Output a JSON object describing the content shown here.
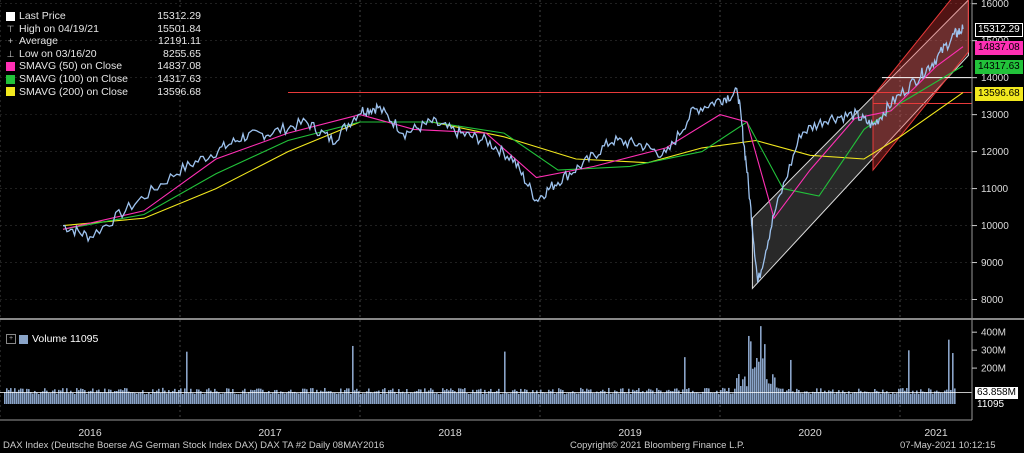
{
  "legend": {
    "items": [
      {
        "label": "Last Price",
        "value": "15312.29",
        "swatch": "#ffffff",
        "kind": "box"
      },
      {
        "label": "High on 04/19/21",
        "value": "15501.84",
        "kind": "high"
      },
      {
        "label": "Average",
        "value": "12191.11",
        "kind": "avg"
      },
      {
        "label": "Low on 03/16/20",
        "value": "8255.65",
        "kind": "low"
      },
      {
        "label": "SMAVG (50)  on Close",
        "value": "14837.08",
        "swatch": "#ff2fb4",
        "kind": "box"
      },
      {
        "label": "SMAVG (100)  on Close",
        "value": "14317.63",
        "swatch": "#22c23a",
        "kind": "box"
      },
      {
        "label": "SMAVG (200)  on Close",
        "value": "13596.68",
        "swatch": "#f2e81e",
        "kind": "box"
      }
    ]
  },
  "volume_legend": {
    "label": "Volume  11095"
  },
  "price_labels": [
    {
      "text": "15312.29",
      "value": 15312.29,
      "bg": "#000000",
      "fg": "#ffffff",
      "border": "#ffffff"
    },
    {
      "text": "14837.08",
      "value": 14837.08,
      "bg": "#ff2fb4",
      "fg": "#000000",
      "border": "#ff2fb4"
    },
    {
      "text": "14317.63",
      "value": 14317.63,
      "bg": "#22c23a",
      "fg": "#000000",
      "border": "#22c23a"
    },
    {
      "text": "13596.68",
      "value": 13596.68,
      "bg": "#f2e81e",
      "fg": "#000000",
      "border": "#f2e81e"
    }
  ],
  "volume_labels": [
    {
      "text": "63.858M",
      "bg": "#ffffff",
      "fg": "#000000"
    },
    {
      "text": "11095",
      "bg": "#000000",
      "fg": "#ffffff"
    }
  ],
  "footer": {
    "left": "DAX Index (Deutsche Boerse AG German Stock Index DAX)  DAX TA #2  Daily 08MAY2016",
    "center": "Copyright© 2021 Bloomberg Finance L.P.",
    "right": "07-May-2021  10:12:15"
  },
  "colors": {
    "price": "#9ec3ef",
    "sma50": "#ff2fb4",
    "sma100": "#22c23a",
    "sma200": "#f2e81e",
    "volume": "#8aa4c8",
    "channel_red": "#e83a3a",
    "channel_white": "#dddddd"
  },
  "chart_data": {
    "type": "line",
    "title": "DAX Index (Deutsche Boerse AG German Stock Index DAX)",
    "x_ticks": [
      "2016",
      "2017",
      "2018",
      "2019",
      "2020",
      "2021"
    ],
    "y_ticks": [
      8000,
      9000,
      10000,
      11000,
      12000,
      13000,
      14000,
      15000,
      16000
    ],
    "ylim": [
      7500,
      16100
    ],
    "volume_ticks": [
      "400M",
      "300M",
      "200M"
    ],
    "volume_ylim": [
      0,
      440
    ],
    "key_values": {
      "last": 15312.29,
      "high": 15501.84,
      "high_date": "04/19/21",
      "average": 12191.11,
      "low": 8255.65,
      "low_date": "03/16/20",
      "sma50": 14837.08,
      "sma100": 14317.63,
      "sma200": 13596.68,
      "volume": 11095,
      "avg_volume": "63.858M"
    },
    "series": [
      {
        "name": "Last Price",
        "x": [
          2016.35,
          2016.5,
          2016.75,
          2017.0,
          2017.2,
          2017.35,
          2017.5,
          2017.7,
          2017.85,
          2018.0,
          2018.1,
          2018.25,
          2018.4,
          2018.55,
          2018.7,
          2018.85,
          2018.98,
          2019.1,
          2019.25,
          2019.4,
          2019.55,
          2019.7,
          2019.85,
          2020.0,
          2020.1,
          2020.15,
          2020.21,
          2020.3,
          2020.45,
          2020.6,
          2020.75,
          2020.85,
          2020.95,
          2021.1,
          2021.2,
          2021.3,
          2021.35
        ],
        "values": [
          10000,
          9700,
          10600,
          11500,
          12000,
          12400,
          12500,
          12800,
          12300,
          13100,
          13200,
          12500,
          12800,
          12500,
          12300,
          11800,
          10700,
          11200,
          11700,
          12300,
          12200,
          11900,
          13100,
          13400,
          13600,
          11500,
          8450,
          10300,
          12500,
          12900,
          13000,
          12700,
          13300,
          14000,
          14500,
          15150,
          15312
        ]
      },
      {
        "name": "SMAVG (50)  on Close",
        "x": [
          2016.35,
          2016.8,
          2017.2,
          2017.6,
          2018.0,
          2018.3,
          2018.7,
          2018.98,
          2019.3,
          2019.7,
          2020.0,
          2020.15,
          2020.3,
          2020.5,
          2020.75,
          2020.95,
          2021.2,
          2021.35
        ],
        "values": [
          9900,
          10400,
          11800,
          12500,
          13000,
          12600,
          12500,
          11300,
          11600,
          12100,
          13000,
          12800,
          10200,
          11500,
          12900,
          13100,
          14300,
          14837
        ]
      },
      {
        "name": "SMAVG (100)  on Close",
        "x": [
          2016.35,
          2016.8,
          2017.2,
          2017.6,
          2018.0,
          2018.4,
          2018.8,
          2019.1,
          2019.5,
          2019.9,
          2020.15,
          2020.35,
          2020.55,
          2020.8,
          2021.0,
          2021.35
        ],
        "values": [
          9900,
          10300,
          11400,
          12300,
          12800,
          12800,
          12500,
          11500,
          11600,
          12000,
          12800,
          11000,
          10800,
          12600,
          13300,
          14317
        ]
      },
      {
        "name": "SMAVG (200)  on Close",
        "x": [
          2016.35,
          2016.8,
          2017.2,
          2017.6,
          2018.0,
          2018.4,
          2018.8,
          2019.2,
          2019.6,
          2019.9,
          2020.2,
          2020.5,
          2020.8,
          2021.0,
          2021.35
        ],
        "values": [
          10000,
          10200,
          11000,
          12000,
          12800,
          12800,
          12400,
          11800,
          11700,
          12100,
          12300,
          11900,
          11800,
          12400,
          13596
        ]
      }
    ]
  }
}
